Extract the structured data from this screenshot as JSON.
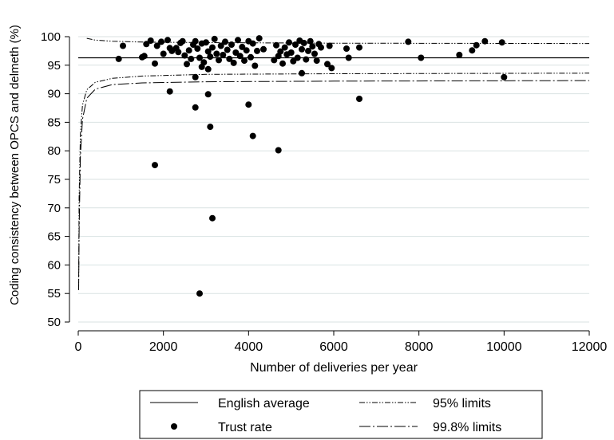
{
  "chart_data": {
    "type": "scatter",
    "xlabel": "Number of deliveries per year",
    "ylabel": "Coding consistency between OPCS and delmeth (%)",
    "xlim": [
      0,
      12000
    ],
    "ylim": [
      50,
      100
    ],
    "x_ticks": [
      "0",
      "2000",
      "4000",
      "6000",
      "8000",
      "10000",
      "12000"
    ],
    "y_ticks": [
      "50",
      "55",
      "60",
      "65",
      "70",
      "75",
      "80",
      "85",
      "90",
      "95",
      "100"
    ],
    "grid": "horizontal",
    "legend_position": "bottom",
    "average": 96.3,
    "funnel_curves": {
      "upper_95": [
        [
          200,
          99.7
        ],
        [
          400,
          99.4
        ],
        [
          800,
          99.2
        ],
        [
          1500,
          99.05
        ],
        [
          3000,
          98.95
        ],
        [
          6000,
          98.85
        ],
        [
          12000,
          98.8
        ]
      ],
      "lower_95": [
        [
          10,
          55.6
        ],
        [
          20,
          72
        ],
        [
          50,
          83
        ],
        [
          100,
          88
        ],
        [
          200,
          90.7
        ],
        [
          400,
          92.0
        ],
        [
          800,
          92.7
        ],
        [
          1500,
          93.1
        ],
        [
          3000,
          93.4
        ],
        [
          6000,
          93.5
        ],
        [
          12000,
          93.6
        ]
      ],
      "lower_998": [
        [
          10,
          55.6
        ],
        [
          20,
          66
        ],
        [
          50,
          79
        ],
        [
          100,
          85.5
        ],
        [
          200,
          89.2
        ],
        [
          400,
          90.8
        ],
        [
          800,
          91.6
        ],
        [
          1500,
          91.9
        ],
        [
          3000,
          92.1
        ],
        [
          6000,
          92.2
        ],
        [
          12000,
          92.3
        ]
      ]
    },
    "series": [
      {
        "name": "Trust rate",
        "points": [
          [
            950,
            96.1
          ],
          [
            1050,
            98.4
          ],
          [
            1500,
            96.4
          ],
          [
            1550,
            96.6
          ],
          [
            1600,
            98.7
          ],
          [
            1700,
            99.3
          ],
          [
            1800,
            95.3
          ],
          [
            1850,
            98.4
          ],
          [
            1950,
            99.1
          ],
          [
            2000,
            97.0
          ],
          [
            2100,
            99.4
          ],
          [
            2150,
            98.0
          ],
          [
            2200,
            97.5
          ],
          [
            2300,
            98.0
          ],
          [
            2350,
            97.3
          ],
          [
            2400,
            98.9
          ],
          [
            2450,
            99.2
          ],
          [
            2500,
            96.7
          ],
          [
            2550,
            95.2
          ],
          [
            2600,
            97.6
          ],
          [
            2650,
            96.1
          ],
          [
            2700,
            98.6
          ],
          [
            2750,
            99.2
          ],
          [
            2800,
            97.9
          ],
          [
            2850,
            96.3
          ],
          [
            2900,
            98.8
          ],
          [
            2950,
            95.5
          ],
          [
            3000,
            99.0
          ],
          [
            3050,
            97.4
          ],
          [
            3100,
            96.5
          ],
          [
            3150,
            98.1
          ],
          [
            3200,
            99.6
          ],
          [
            3250,
            97.0
          ],
          [
            3300,
            95.9
          ],
          [
            3350,
            98.4
          ],
          [
            3400,
            96.8
          ],
          [
            3450,
            99.1
          ],
          [
            3500,
            97.7
          ],
          [
            3550,
            96.1
          ],
          [
            3600,
            98.6
          ],
          [
            3650,
            95.4
          ],
          [
            3700,
            97.2
          ],
          [
            3750,
            99.4
          ],
          [
            3800,
            96.6
          ],
          [
            3850,
            98.2
          ],
          [
            3900,
            95.8
          ],
          [
            3950,
            97.6
          ],
          [
            4000,
            99.2
          ],
          [
            4050,
            96.4
          ],
          [
            4100,
            98.8
          ],
          [
            4150,
            94.9
          ],
          [
            4200,
            97.5
          ],
          [
            4250,
            99.7
          ],
          [
            4350,
            97.8
          ],
          [
            4600,
            95.9
          ],
          [
            4650,
            98.5
          ],
          [
            4700,
            96.6
          ],
          [
            4750,
            97.4
          ],
          [
            4800,
            95.3
          ],
          [
            4850,
            98.1
          ],
          [
            4900,
            96.9
          ],
          [
            4950,
            99.0
          ],
          [
            5000,
            97.2
          ],
          [
            5050,
            95.7
          ],
          [
            5100,
            98.6
          ],
          [
            5150,
            96.3
          ],
          [
            5200,
            99.3
          ],
          [
            5250,
            97.8
          ],
          [
            5300,
            98.9
          ],
          [
            5350,
            96.0
          ],
          [
            5400,
            97.5
          ],
          [
            5450,
            99.2
          ],
          [
            5500,
            98.3
          ],
          [
            5550,
            97.0
          ],
          [
            5600,
            95.8
          ],
          [
            5650,
            98.7
          ],
          [
            5700,
            98.1
          ],
          [
            5850,
            95.2
          ],
          [
            5900,
            98.4
          ],
          [
            5950,
            94.5
          ],
          [
            6300,
            97.9
          ],
          [
            6350,
            96.3
          ],
          [
            6600,
            98.1
          ],
          [
            7750,
            99.1
          ],
          [
            8050,
            96.3
          ],
          [
            8950,
            96.8
          ],
          [
            9250,
            97.6
          ],
          [
            9350,
            98.5
          ],
          [
            9550,
            99.2
          ],
          [
            9950,
            99.0
          ],
          [
            2150,
            90.4
          ],
          [
            2750,
            92.9
          ],
          [
            2900,
            94.7
          ],
          [
            3050,
            94.3
          ],
          [
            3050,
            89.9
          ],
          [
            3100,
            84.2
          ],
          [
            2750,
            87.6
          ],
          [
            4000,
            88.1
          ],
          [
            4100,
            82.6
          ],
          [
            4700,
            80.1
          ],
          [
            1800,
            77.5
          ],
          [
            3150,
            68.2
          ],
          [
            2850,
            55.0
          ],
          [
            6600,
            89.1
          ],
          [
            5250,
            93.6
          ],
          [
            10000,
            92.9
          ]
        ]
      }
    ],
    "legend": [
      {
        "label": "English average",
        "style": "solid"
      },
      {
        "label": "95% limits",
        "style": "dash-dot-dot"
      },
      {
        "label": "Trust rate",
        "style": "marker"
      },
      {
        "label": "99.8% limits",
        "style": "long-dash-dot"
      }
    ]
  }
}
